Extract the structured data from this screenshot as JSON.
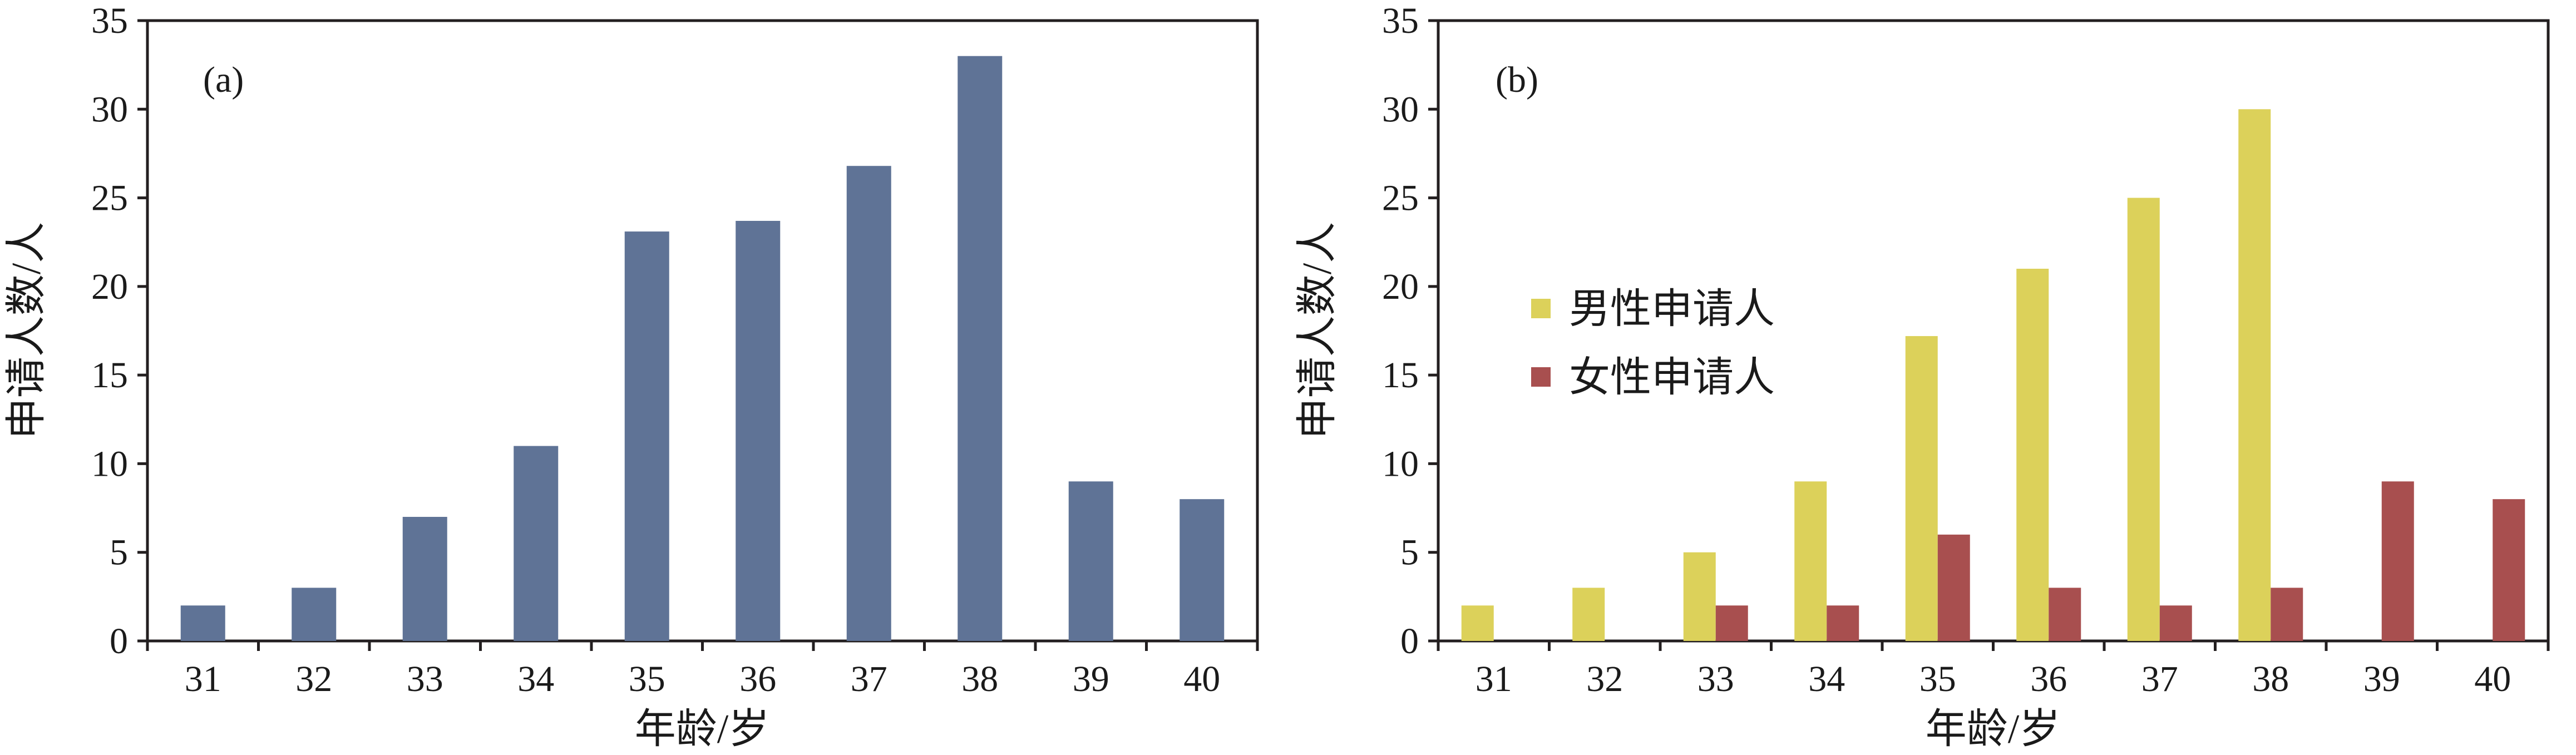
{
  "chart_data": [
    {
      "type": "bar",
      "panel_label": "(a)",
      "categories": [
        "31",
        "32",
        "33",
        "34",
        "35",
        "36",
        "37",
        "38",
        "39",
        "40"
      ],
      "series": [
        {
          "values": [
            2,
            3,
            7,
            11,
            23.1,
            23.7,
            26.8,
            33,
            9,
            8
          ],
          "color": "#5f7396"
        }
      ],
      "xlabel": "年龄/岁",
      "ylabel": "申请人数/人",
      "ylim": [
        0,
        35
      ],
      "yticks": [
        0,
        5,
        10,
        15,
        20,
        25,
        30,
        35
      ],
      "grid": false,
      "legend": null
    },
    {
      "type": "bar",
      "panel_label": "(b)",
      "categories": [
        "31",
        "32",
        "33",
        "34",
        "35",
        "36",
        "37",
        "38",
        "39",
        "40"
      ],
      "series": [
        {
          "name": "男性申请人",
          "values": [
            2,
            3,
            5,
            9,
            17.2,
            21,
            25,
            30,
            0,
            0
          ],
          "color": "#dcd15a"
        },
        {
          "name": "女性申请人",
          "values": [
            0,
            0,
            2,
            2,
            6,
            3,
            2,
            3,
            9,
            8
          ],
          "color": "#a84f4f"
        }
      ],
      "xlabel": "年龄/岁",
      "ylabel": "申请人数/人",
      "ylim": [
        0,
        35
      ],
      "yticks": [
        0,
        5,
        10,
        15,
        20,
        25,
        30,
        35
      ],
      "grid": false,
      "legend": "upper-left"
    }
  ]
}
